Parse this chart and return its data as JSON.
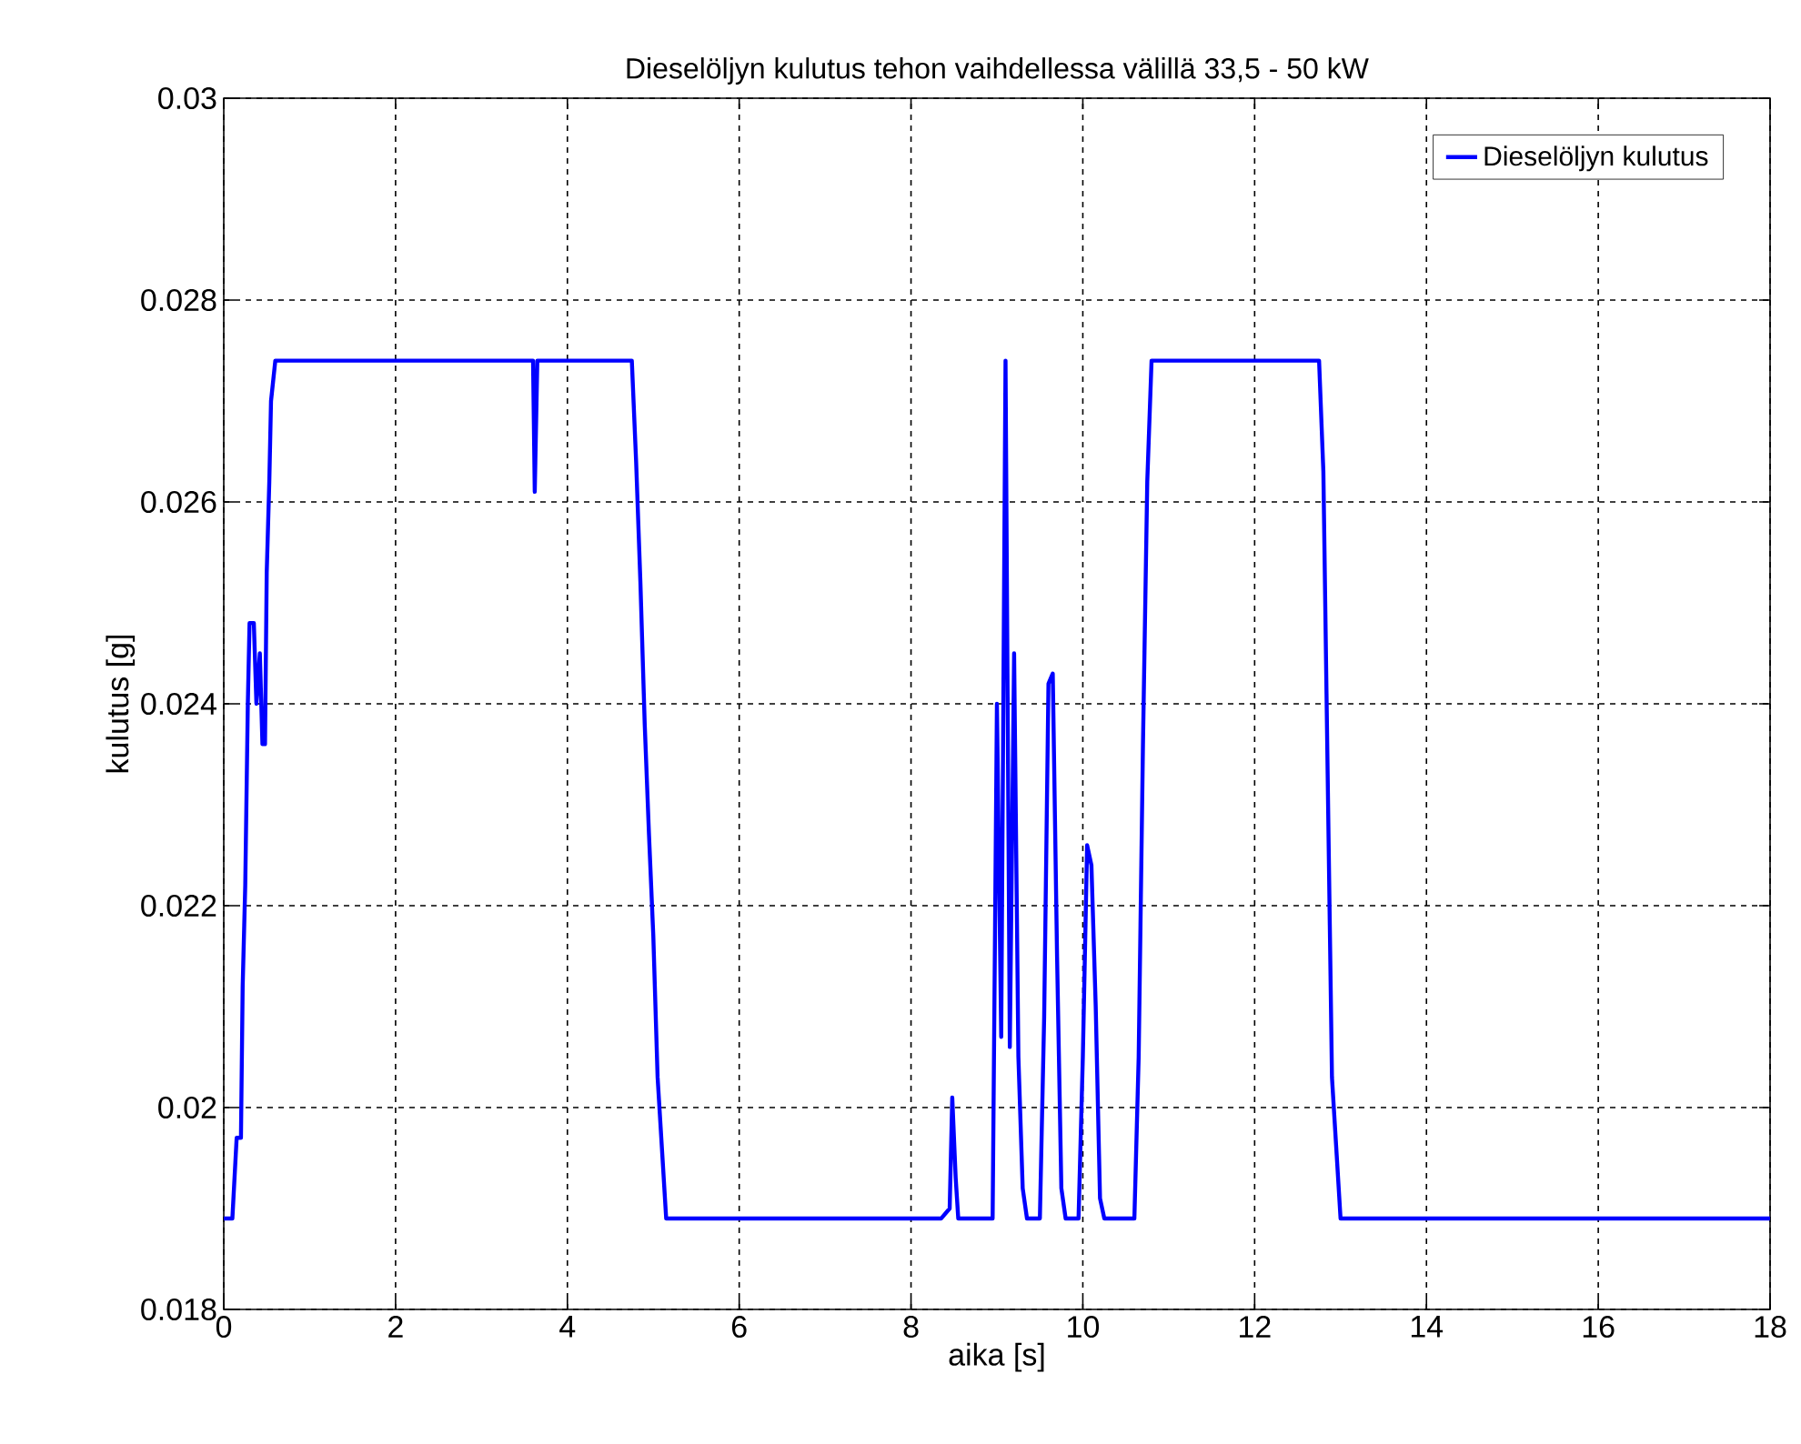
{
  "chart_data": {
    "type": "line",
    "title": "Dieselöljyn kulutus tehon vaihdellessa välillä 33,5 - 50 kW",
    "xlabel": "aika [s]",
    "ylabel": "kulutus [g]",
    "xlim": [
      0,
      18
    ],
    "ylim": [
      0.018,
      0.03
    ],
    "xticks": [
      0,
      2,
      4,
      6,
      8,
      10,
      12,
      14,
      16,
      18
    ],
    "yticks": [
      0.018,
      0.02,
      0.022,
      0.024,
      0.026,
      0.028,
      0.03
    ],
    "grid": true,
    "legend": "top right",
    "line_style": "solid",
    "marker": "none",
    "series": [
      {
        "name": "Dieselöljyn kulutus",
        "color": "#0000ff",
        "x": [
          0,
          0.1,
          0.15,
          0.2,
          0.22,
          0.25,
          0.28,
          0.3,
          0.35,
          0.38,
          0.42,
          0.45,
          0.48,
          0.5,
          0.53,
          0.55,
          0.6,
          3.6,
          3.62,
          3.65,
          4.75,
          4.8,
          4.85,
          4.9,
          4.95,
          5.0,
          5.05,
          5.1,
          5.15,
          8.35,
          8.45,
          8.48,
          8.52,
          8.55,
          8.95,
          9.0,
          9.05,
          9.1,
          9.15,
          9.2,
          9.25,
          9.3,
          9.35,
          9.5,
          9.55,
          9.6,
          9.65,
          9.7,
          9.75,
          9.8,
          9.95,
          10.0,
          10.05,
          10.1,
          10.15,
          10.2,
          10.25,
          10.6,
          10.65,
          10.7,
          10.75,
          10.8,
          12.75,
          12.8,
          12.85,
          12.9,
          13.0,
          18
        ],
        "values": [
          0.0189,
          0.0189,
          0.0197,
          0.0197,
          0.0212,
          0.0222,
          0.024,
          0.0248,
          0.0248,
          0.024,
          0.0245,
          0.0236,
          0.0236,
          0.0253,
          0.0262,
          0.027,
          0.0274,
          0.0274,
          0.0261,
          0.0274,
          0.0274,
          0.0264,
          0.0252,
          0.0238,
          0.0227,
          0.0217,
          0.0203,
          0.0196,
          0.0189,
          0.0189,
          0.019,
          0.0201,
          0.0193,
          0.0189,
          0.0189,
          0.024,
          0.0207,
          0.0274,
          0.0206,
          0.0245,
          0.0205,
          0.0192,
          0.0189,
          0.0189,
          0.0209,
          0.0242,
          0.0243,
          0.0215,
          0.0192,
          0.0189,
          0.0189,
          0.0205,
          0.0226,
          0.0224,
          0.021,
          0.0191,
          0.0189,
          0.0189,
          0.0205,
          0.0236,
          0.0262,
          0.0274,
          0.0274,
          0.0263,
          0.0233,
          0.0203,
          0.0189,
          0.0189
        ]
      }
    ]
  }
}
